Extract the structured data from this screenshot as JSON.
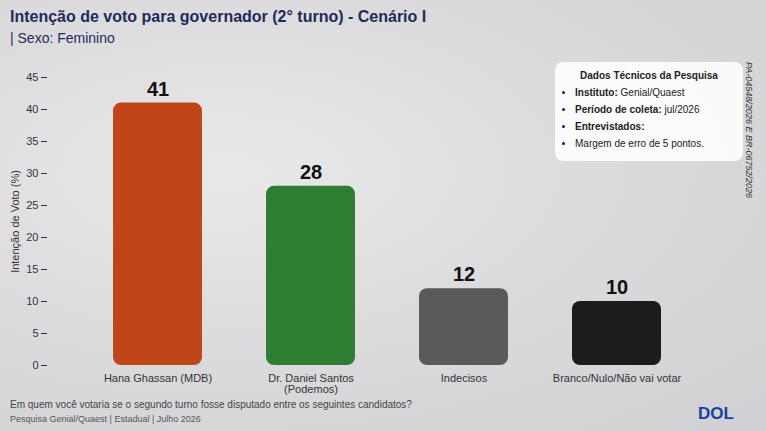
{
  "chart_data": {
    "type": "bar",
    "title": "Intenção de voto para governador (2° turno) - Cenário I",
    "subtitle": "| Sexo: Feminino",
    "y_label": "Intenção de Voto (%)",
    "categories": [
      "Hana Ghassan (MDB)",
      "Dr. Daniel Santos (Podemos)",
      "Indecisos",
      "Branco/Nulo/Não vai votar"
    ],
    "values": [
      41,
      28,
      12,
      10
    ],
    "colors": [
      "#c0461a",
      "#2e7d32",
      "#5a5a5a",
      "#1c1c1c"
    ],
    "ylim": [
      0,
      45
    ],
    "yticks": [
      0,
      5,
      10,
      15,
      20,
      25,
      30,
      35,
      40,
      45
    ],
    "data_labels": true,
    "grid": false,
    "info_box": {
      "title": "Dados Técnicos da Pesquisa",
      "items": [
        "Instituto: Genial/Quaest",
        "Período de coleta: jul/2026",
        "Entrevistados:",
        "Margem de erro de 5 pontos."
      ]
    },
    "side_note": "PA-04548/2026 E BR-06752/2026",
    "caption": "Em quem você votaria se o segundo turno fosse disputado entre os seguintes candidatos?",
    "source": "Pesquisa Genial/Quaest | Estadual | Julho 2026",
    "logo": "DOL"
  }
}
